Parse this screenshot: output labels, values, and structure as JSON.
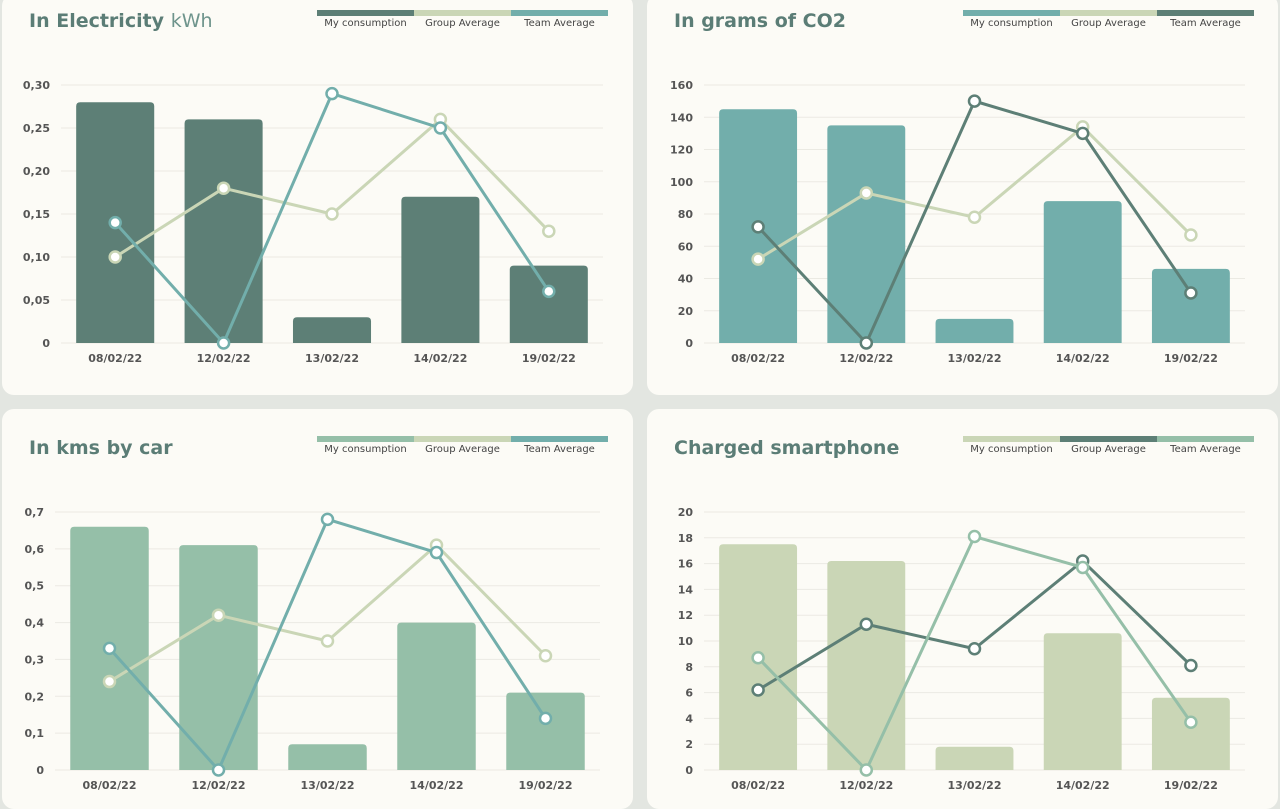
{
  "palette": {
    "dark": "#5d7f76",
    "teal": "#72aeab",
    "mint": "#95bfa8",
    "sage": "#cad6b6"
  },
  "chart_data": [
    {
      "type": "bar",
      "title": "In Electricity",
      "unit": "kWh",
      "categories": [
        "08/02/22",
        "12/02/22",
        "13/02/22",
        "14/02/22",
        "19/02/22"
      ],
      "ylim": [
        0,
        0.3
      ],
      "yticks": [
        "0",
        "0,05",
        "0,10",
        "0,15",
        "0,20",
        "0,25",
        "0,30"
      ],
      "series": [
        {
          "name": "My consumption",
          "kind": "bar",
          "color": "#5d7f76",
          "values": [
            0.28,
            0.26,
            0.03,
            0.17,
            0.09
          ]
        },
        {
          "name": "Group Average",
          "kind": "line",
          "color": "#cad6b6",
          "values": [
            0.1,
            0.18,
            0.15,
            0.26,
            0.13
          ]
        },
        {
          "name": "Team Average",
          "kind": "line",
          "color": "#72aeab",
          "values": [
            0.14,
            0.0,
            0.29,
            0.25,
            0.06
          ]
        }
      ],
      "grid": true,
      "legend": "top-right"
    },
    {
      "type": "bar",
      "title": "In grams of CO2",
      "unit": "",
      "categories": [
        "08/02/22",
        "12/02/22",
        "13/02/22",
        "14/02/22",
        "19/02/22"
      ],
      "ylim": [
        0,
        160
      ],
      "yticks": [
        "0",
        "20",
        "40",
        "60",
        "80",
        "100",
        "120",
        "140",
        "160"
      ],
      "series": [
        {
          "name": "My consumption",
          "kind": "bar",
          "color": "#72aeab",
          "values": [
            145,
            135,
            15,
            88,
            46
          ]
        },
        {
          "name": "Group Average",
          "kind": "line",
          "color": "#cad6b6",
          "values": [
            52,
            93,
            78,
            134,
            67
          ]
        },
        {
          "name": "Team Average",
          "kind": "line",
          "color": "#5d7f76",
          "values": [
            72,
            0,
            150,
            130,
            31
          ]
        }
      ],
      "grid": true,
      "legend": "top-right"
    },
    {
      "type": "bar",
      "title": "In kms by car",
      "unit": "",
      "categories": [
        "08/02/22",
        "12/02/22",
        "13/02/22",
        "14/02/22",
        "19/02/22"
      ],
      "ylim": [
        0,
        0.7
      ],
      "yticks": [
        "0",
        "0,1",
        "0,2",
        "0,3",
        "0,4",
        "0,5",
        "0,6",
        "0,7"
      ],
      "series": [
        {
          "name": "My consumption",
          "kind": "bar",
          "color": "#95bfa8",
          "values": [
            0.66,
            0.61,
            0.07,
            0.4,
            0.21
          ]
        },
        {
          "name": "Group Average",
          "kind": "line",
          "color": "#cad6b6",
          "values": [
            0.24,
            0.42,
            0.35,
            0.61,
            0.31
          ]
        },
        {
          "name": "Team Average",
          "kind": "line",
          "color": "#72aeab",
          "values": [
            0.33,
            0.0,
            0.68,
            0.59,
            0.14
          ]
        }
      ],
      "grid": true,
      "legend": "top-right"
    },
    {
      "type": "bar",
      "title": "Charged smartphone",
      "unit": "",
      "categories": [
        "08/02/22",
        "12/02/22",
        "13/02/22",
        "14/02/22",
        "19/02/22"
      ],
      "ylim": [
        0,
        20
      ],
      "yticks": [
        "0",
        "2",
        "4",
        "6",
        "8",
        "10",
        "12",
        "14",
        "16",
        "18",
        "20"
      ],
      "series": [
        {
          "name": "My consumption",
          "kind": "bar",
          "color": "#cad6b6",
          "values": [
            17.5,
            16.2,
            1.8,
            10.6,
            5.6
          ]
        },
        {
          "name": "Group Average",
          "kind": "line",
          "color": "#5d7f76",
          "values": [
            6.2,
            11.3,
            9.4,
            16.2,
            8.1
          ]
        },
        {
          "name": "Team Average",
          "kind": "line",
          "color": "#95bfa8",
          "values": [
            8.7,
            0,
            18.1,
            15.7,
            3.7
          ]
        }
      ],
      "grid": true,
      "legend": "top-right"
    }
  ]
}
